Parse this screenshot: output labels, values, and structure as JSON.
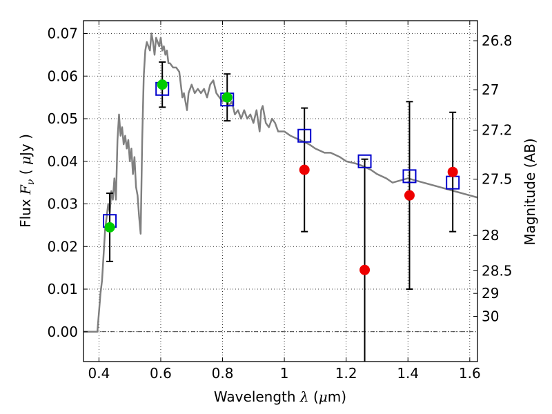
{
  "chart_data": {
    "type": "scatter",
    "xlabel": "Wavelength  λ (μm)",
    "ylabel": "Flux  Fν  ( μJy )",
    "y2label": "Magnitude (AB)",
    "xlim": [
      0.35,
      1.625
    ],
    "ylim": [
      -0.007,
      0.073
    ],
    "x_ticks": [
      0.4,
      0.6,
      0.8,
      1.0,
      1.2,
      1.4,
      1.6
    ],
    "x_tick_labels": [
      "0.4",
      "0.6",
      "0.8",
      "1",
      "1.2",
      "1.4",
      "1.6"
    ],
    "y_ticks": [
      0.0,
      0.01,
      0.02,
      0.03,
      0.04,
      0.05,
      0.06,
      0.07
    ],
    "y_tick_labels": [
      "0.00",
      "0.01",
      "0.02",
      "0.03",
      "0.04",
      "0.05",
      "0.06",
      "0.07"
    ],
    "y2_ticks": [
      {
        "label": "26.8",
        "flux": 0.0683
      },
      {
        "label": "27",
        "flux": 0.0568
      },
      {
        "label": "27.2",
        "flux": 0.0473
      },
      {
        "label": "27.5",
        "flux": 0.0358
      },
      {
        "label": "28",
        "flux": 0.0226
      },
      {
        "label": "28.5",
        "flux": 0.0143
      },
      {
        "label": "29",
        "flux": 0.009
      },
      {
        "label": "30",
        "flux": 0.0036
      }
    ],
    "grid": true,
    "reference_line": {
      "y": 0.0,
      "style": "dash-dot"
    },
    "series": [
      {
        "kind": "line",
        "color": "#808080",
        "points": [
          [
            0.35,
            0.0
          ],
          [
            0.395,
            0.0
          ],
          [
            0.4,
            0.0045
          ],
          [
            0.405,
            0.009
          ],
          [
            0.41,
            0.012
          ],
          [
            0.415,
            0.018
          ],
          [
            0.42,
            0.024
          ],
          [
            0.425,
            0.027
          ],
          [
            0.43,
            0.03
          ],
          [
            0.435,
            0.028
          ],
          [
            0.44,
            0.033
          ],
          [
            0.445,
            0.031
          ],
          [
            0.45,
            0.036
          ],
          [
            0.455,
            0.031
          ],
          [
            0.46,
            0.045
          ],
          [
            0.465,
            0.051
          ],
          [
            0.47,
            0.046
          ],
          [
            0.475,
            0.048
          ],
          [
            0.48,
            0.044
          ],
          [
            0.485,
            0.046
          ],
          [
            0.49,
            0.043
          ],
          [
            0.495,
            0.045
          ],
          [
            0.5,
            0.04
          ],
          [
            0.505,
            0.043
          ],
          [
            0.51,
            0.037
          ],
          [
            0.515,
            0.041
          ],
          [
            0.52,
            0.034
          ],
          [
            0.525,
            0.032
          ],
          [
            0.53,
            0.027
          ],
          [
            0.535,
            0.023
          ],
          [
            0.54,
            0.045
          ],
          [
            0.545,
            0.06
          ],
          [
            0.55,
            0.066
          ],
          [
            0.555,
            0.068
          ],
          [
            0.56,
            0.067
          ],
          [
            0.565,
            0.066
          ],
          [
            0.57,
            0.07
          ],
          [
            0.575,
            0.068
          ],
          [
            0.58,
            0.065
          ],
          [
            0.585,
            0.069
          ],
          [
            0.59,
            0.068
          ],
          [
            0.595,
            0.067
          ],
          [
            0.6,
            0.069
          ],
          [
            0.605,
            0.066
          ],
          [
            0.61,
            0.067
          ],
          [
            0.615,
            0.065
          ],
          [
            0.62,
            0.066
          ],
          [
            0.625,
            0.063
          ],
          [
            0.63,
            0.063
          ],
          [
            0.64,
            0.062
          ],
          [
            0.65,
            0.062
          ],
          [
            0.66,
            0.061
          ],
          [
            0.665,
            0.058
          ],
          [
            0.67,
            0.055
          ],
          [
            0.675,
            0.056
          ],
          [
            0.68,
            0.054
          ],
          [
            0.685,
            0.052
          ],
          [
            0.69,
            0.056
          ],
          [
            0.7,
            0.058
          ],
          [
            0.71,
            0.056
          ],
          [
            0.72,
            0.057
          ],
          [
            0.73,
            0.056
          ],
          [
            0.74,
            0.057
          ],
          [
            0.75,
            0.055
          ],
          [
            0.76,
            0.058
          ],
          [
            0.77,
            0.059
          ],
          [
            0.78,
            0.056
          ],
          [
            0.79,
            0.055
          ],
          [
            0.8,
            0.054
          ],
          [
            0.81,
            0.056
          ],
          [
            0.82,
            0.053
          ],
          [
            0.83,
            0.054
          ],
          [
            0.84,
            0.051
          ],
          [
            0.85,
            0.052
          ],
          [
            0.86,
            0.05
          ],
          [
            0.87,
            0.052
          ],
          [
            0.88,
            0.05
          ],
          [
            0.89,
            0.051
          ],
          [
            0.9,
            0.049
          ],
          [
            0.91,
            0.052
          ],
          [
            0.92,
            0.047
          ],
          [
            0.925,
            0.052
          ],
          [
            0.93,
            0.053
          ],
          [
            0.94,
            0.049
          ],
          [
            0.95,
            0.048
          ],
          [
            0.96,
            0.05
          ],
          [
            0.97,
            0.049
          ],
          [
            0.98,
            0.047
          ],
          [
            1.0,
            0.047
          ],
          [
            1.02,
            0.046
          ],
          [
            1.05,
            0.045
          ],
          [
            1.08,
            0.044
          ],
          [
            1.1,
            0.043
          ],
          [
            1.13,
            0.042
          ],
          [
            1.15,
            0.042
          ],
          [
            1.18,
            0.041
          ],
          [
            1.2,
            0.04
          ],
          [
            1.23,
            0.0395
          ],
          [
            1.25,
            0.039
          ],
          [
            1.28,
            0.038
          ],
          [
            1.3,
            0.037
          ],
          [
            1.33,
            0.036
          ],
          [
            1.35,
            0.035
          ],
          [
            1.4,
            0.036
          ],
          [
            1.45,
            0.035
          ],
          [
            1.5,
            0.034
          ],
          [
            1.55,
            0.033
          ],
          [
            1.6,
            0.032
          ],
          [
            1.625,
            0.0315
          ]
        ]
      },
      {
        "kind": "model_points",
        "marker": "open-square",
        "color": "#0000cc",
        "points": [
          [
            0.435,
            0.026
          ],
          [
            0.605,
            0.057
          ],
          [
            0.815,
            0.0545
          ],
          [
            1.065,
            0.046
          ],
          [
            1.26,
            0.04
          ],
          [
            1.405,
            0.0365
          ],
          [
            1.545,
            0.035
          ]
        ]
      },
      {
        "kind": "measurements",
        "marker": "filled-circle",
        "points": [
          {
            "x": 0.435,
            "y": 0.0245,
            "err": 0.008,
            "color": "#00cc00"
          },
          {
            "x": 0.605,
            "y": 0.058,
            "err": 0.0053,
            "color": "#00cc00"
          },
          {
            "x": 0.815,
            "y": 0.055,
            "err": 0.0055,
            "color": "#00cc00"
          },
          {
            "x": 1.065,
            "y": 0.038,
            "err": 0.0145,
            "color": "#ee0000"
          },
          {
            "x": 1.26,
            "y": 0.0145,
            "err": 0.026,
            "color": "#ee0000"
          },
          {
            "x": 1.405,
            "y": 0.032,
            "err": 0.022,
            "color": "#ee0000"
          },
          {
            "x": 1.545,
            "y": 0.0375,
            "err": 0.014,
            "color": "#ee0000"
          }
        ]
      }
    ]
  }
}
